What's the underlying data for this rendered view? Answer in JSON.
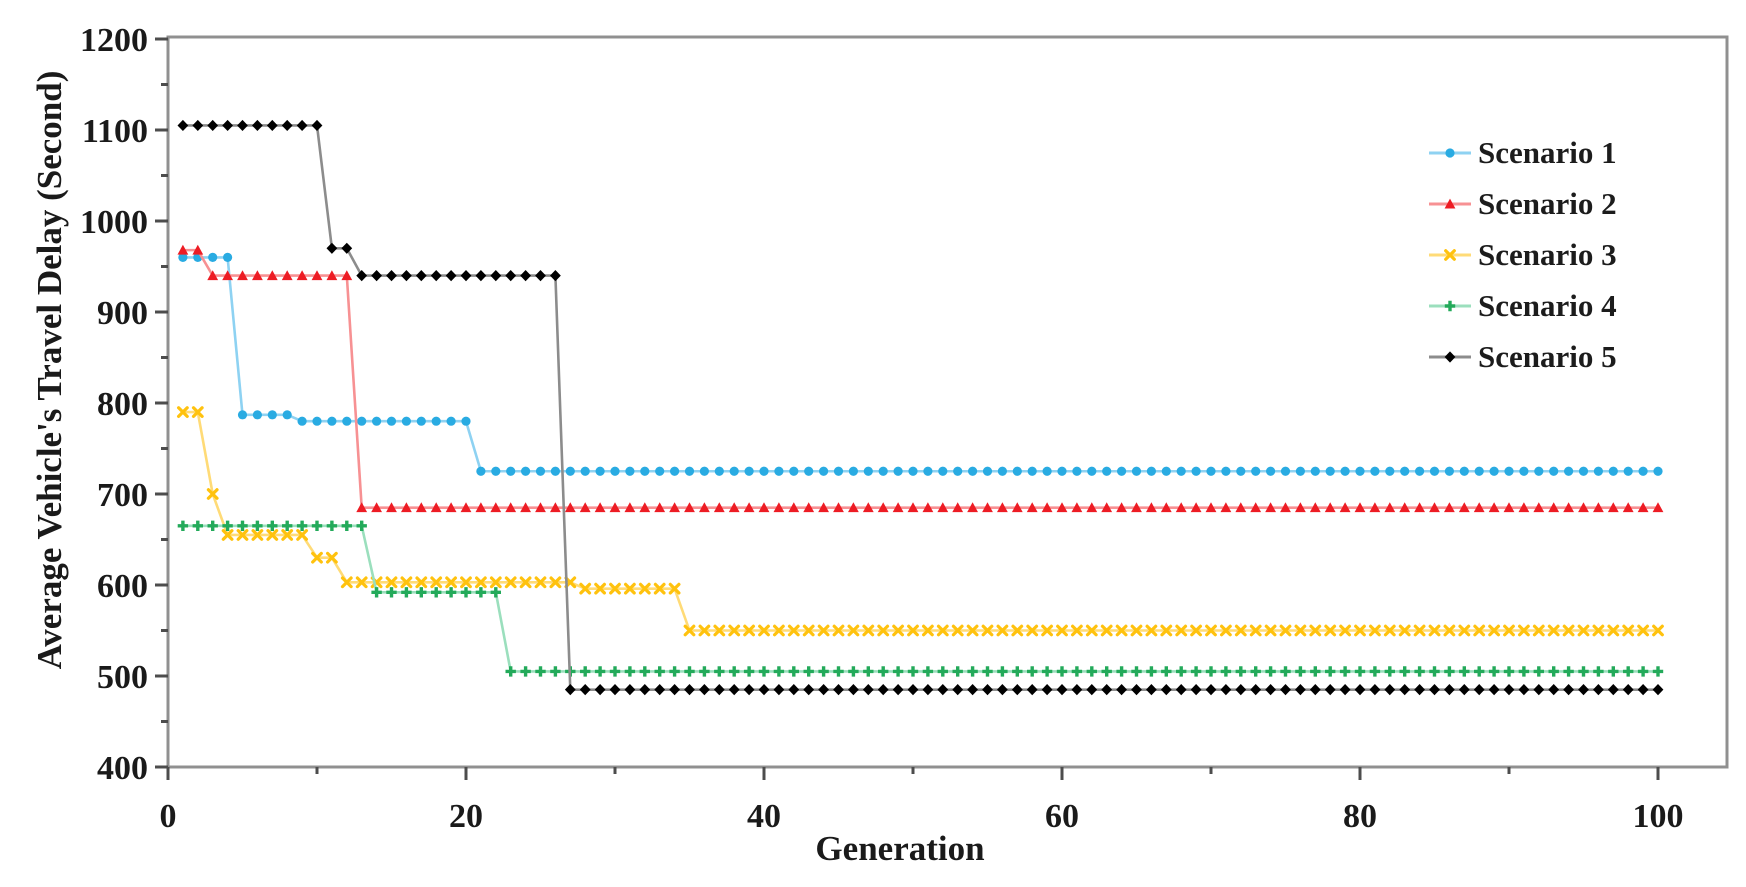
{
  "chart_data": {
    "type": "line",
    "title": "",
    "xlabel": "Generation",
    "ylabel": "Average Vehicle's Travel Delay (Second)",
    "grid": "off",
    "legend_position": "inside-upper-right",
    "x_axis": {
      "min": 0,
      "max": 100,
      "major_tick": 20,
      "minor_tick": 10,
      "tick_labels": [
        "0",
        "20",
        "40",
        "60",
        "80",
        "100"
      ]
    },
    "y_axis": {
      "min": 400,
      "max": 1200,
      "major_tick": 100,
      "minor_tick": 50,
      "tick_labels": [
        "400",
        "500",
        "600",
        "700",
        "800",
        "900",
        "1000",
        "1100",
        "1200"
      ]
    },
    "x_points": "one marker per generation, 1 through 100",
    "series": [
      {
        "name": "Scenario 1",
        "marker": "circle",
        "color": "#29ABE2",
        "line_color": "#8ED2F2",
        "steps_gen_value": [
          [
            1,
            960
          ],
          [
            5,
            787
          ],
          [
            9,
            780
          ],
          [
            21,
            725
          ]
        ]
      },
      {
        "name": "Scenario 2",
        "marker": "triangle",
        "color": "#ED1C24",
        "line_color": "#F79193",
        "steps_gen_value": [
          [
            1,
            968
          ],
          [
            3,
            940
          ],
          [
            13,
            685
          ]
        ]
      },
      {
        "name": "Scenario 3",
        "marker": "x",
        "color": "#FFC20E",
        "line_color": "#FFDB77",
        "steps_gen_value": [
          [
            1,
            790
          ],
          [
            3,
            700
          ],
          [
            4,
            655
          ],
          [
            10,
            630
          ],
          [
            12,
            603
          ],
          [
            28,
            596
          ],
          [
            35,
            550
          ]
        ]
      },
      {
        "name": "Scenario 4",
        "marker": "plus",
        "color": "#23AA5A",
        "line_color": "#9BDFBD",
        "steps_gen_value": [
          [
            1,
            665
          ],
          [
            14,
            592
          ],
          [
            23,
            505
          ]
        ]
      },
      {
        "name": "Scenario 5",
        "marker": "diamond",
        "color": "#000000",
        "line_color": "#8C8C8C",
        "steps_gen_value": [
          [
            1,
            1105
          ],
          [
            11,
            970
          ],
          [
            13,
            940
          ],
          [
            27,
            485
          ]
        ]
      }
    ]
  },
  "style_colors": {
    "background": "#FFFFFF",
    "plot_border": "#909090",
    "tick_mark": "#4D4D4D",
    "text": "#1A1A1A"
  }
}
